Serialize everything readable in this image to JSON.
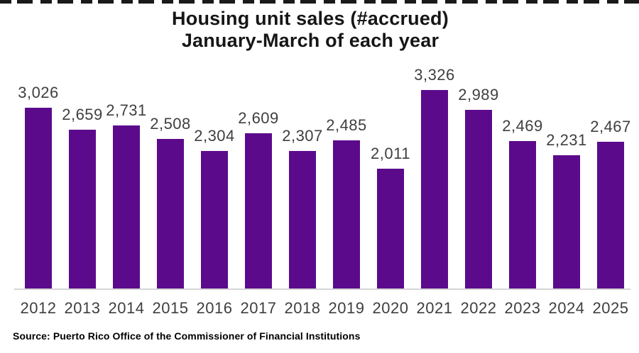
{
  "title": {
    "line1": "Housing unit sales (#accrued)",
    "line2": "January-March of each year"
  },
  "source": "Source: Puerto Rico Office of the Commissioner of Financial Institutions",
  "colors": {
    "bar": "#5b0a8c",
    "data_label": "#3f3f3f",
    "tick_label": "#3f3f3f",
    "axis_line": "#d5d5d5",
    "title": "#161616"
  },
  "chart_data": {
    "type": "bar",
    "title": "Housing unit sales (#accrued) January-March of each year",
    "xlabel": "",
    "ylabel": "",
    "categories": [
      "2012",
      "2013",
      "2014",
      "2015",
      "2016",
      "2017",
      "2018",
      "2019",
      "2020",
      "2021",
      "2022",
      "2023",
      "2024",
      "2025"
    ],
    "values": [
      3026,
      2659,
      2731,
      2508,
      2304,
      2609,
      2307,
      2485,
      2011,
      3326,
      2989,
      2469,
      2231,
      2467
    ],
    "data_labels": [
      "3,026",
      "2,659",
      "2,731",
      "2,508",
      "2,304",
      "2,609",
      "2,307",
      "2,485",
      "2,011",
      "3,326",
      "2,989",
      "2,469",
      "2,231",
      "2,467"
    ],
    "ylim": [
      0,
      3500
    ],
    "grid": false,
    "legend": false,
    "y_axis_visible": false,
    "bar_color": "#5b0a8c"
  }
}
